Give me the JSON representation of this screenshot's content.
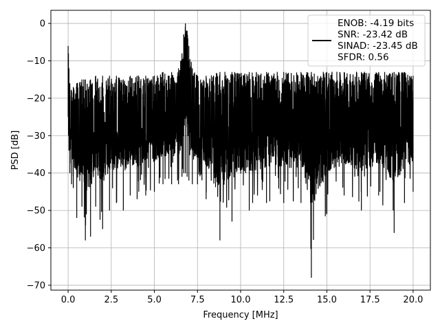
{
  "chart_data": {
    "type": "line",
    "xlabel": "Frequency [MHz]",
    "ylabel": "PSD [dB]",
    "xlim": [
      -1.0,
      21.0
    ],
    "ylim": [
      -71.3,
      3.5
    ],
    "xticks": [
      0.0,
      2.5,
      5.0,
      7.5,
      10.0,
      12.5,
      15.0,
      17.5,
      20.0
    ],
    "xtick_labels": [
      "0.0",
      "2.5",
      "5.0",
      "7.5",
      "10.0",
      "12.5",
      "15.0",
      "17.5",
      "20.0"
    ],
    "yticks": [
      0,
      -10,
      -20,
      -30,
      -40,
      -50,
      -60,
      -70
    ],
    "ytick_labels": [
      "0",
      "−10",
      "−20",
      "−30",
      "−40",
      "−50",
      "−60",
      "−70"
    ],
    "grid": true,
    "line_color": "#000000",
    "legend": {
      "location": "upper right",
      "entries": [
        "ENOB: -4.19 bits",
        "SNR: -23.42 dB",
        "SINAD: -23.45 dB",
        "SFDR: 0.56"
      ]
    },
    "series": [
      {
        "x": [
          0.0,
          0.02,
          0.05,
          0.1,
          0.2,
          0.3,
          0.5,
          0.8,
          1.0,
          1.3,
          1.6,
          2.0,
          2.4,
          2.8,
          3.2,
          3.6,
          4.0,
          4.5,
          5.0,
          5.5,
          6.0,
          6.4,
          6.6,
          6.7,
          6.8,
          6.9,
          7.0,
          7.2,
          7.5,
          8.0,
          8.8,
          9.5,
          10.5,
          11.5,
          12.5,
          13.5,
          14.1,
          15.0,
          16.0,
          17.0,
          18.0,
          18.9,
          19.5,
          20.0
        ],
        "upper": [
          -6,
          -8,
          -12,
          -16,
          -18,
          -17,
          -16,
          -15,
          -15,
          -15,
          -14,
          -14,
          -14,
          -14,
          -15,
          -14,
          -14,
          -14,
          -14,
          -13,
          -13,
          -12,
          -8,
          -3,
          0,
          -2,
          -6,
          -12,
          -14,
          -14,
          -13,
          -13,
          -13,
          -13,
          -13,
          -13,
          -13,
          -13,
          -13,
          -13,
          -13,
          -13,
          -13,
          -14
        ],
        "lower": [
          -25,
          -30,
          -34,
          -40,
          -43,
          -44,
          -52,
          -49,
          -58,
          -57,
          -49,
          -55,
          -50,
          -48,
          -50,
          -46,
          -47,
          -46,
          -45,
          -43,
          -43,
          -43,
          -41,
          -40,
          -40,
          -41,
          -42,
          -43,
          -43,
          -47,
          -58,
          -53,
          -50,
          -48,
          -48,
          -48,
          -68,
          -51,
          -46,
          -50,
          -46,
          -56,
          -48,
          -45
        ],
        "mean": [
          -16,
          -19,
          -23,
          -26,
          -28,
          -28,
          -29,
          -29,
          -29,
          -29,
          -28,
          -28,
          -28,
          -28,
          -28,
          -28,
          -28,
          -28,
          -27,
          -27,
          -27,
          -26,
          -22,
          -14,
          -8,
          -14,
          -21,
          -26,
          -27,
          -27,
          -27,
          -27,
          -27,
          -27,
          -27,
          -27,
          -27,
          -27,
          -27,
          -27,
          -27,
          -27,
          -27,
          -27
        ]
      }
    ]
  }
}
